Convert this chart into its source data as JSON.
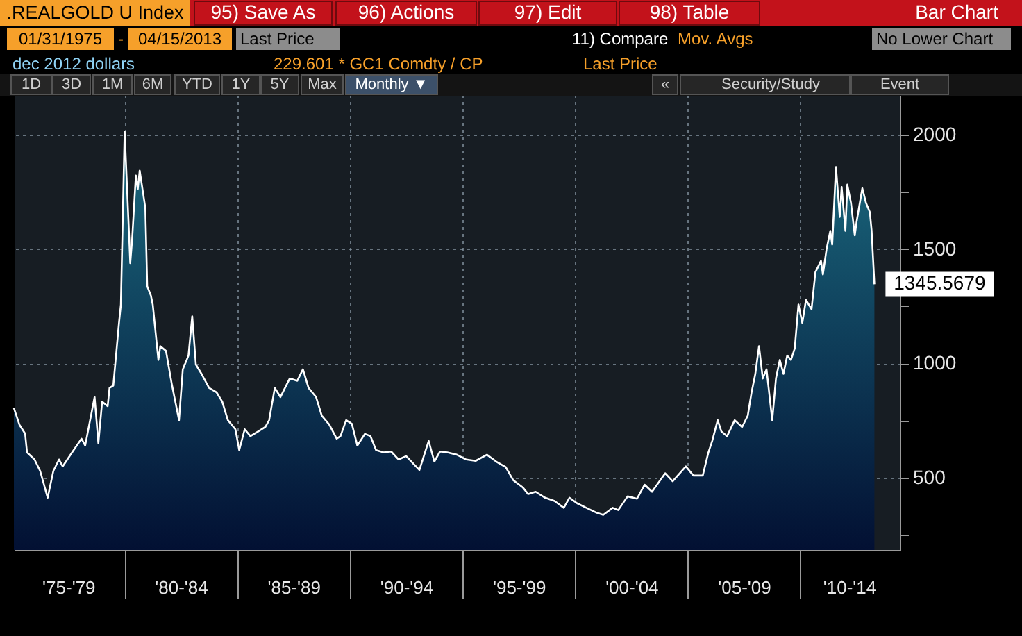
{
  "chart_data": {
    "type": "area",
    "title": ".REALGOLD U Index",
    "subtitle": "dec 2012 dollars",
    "annotations": [
      "95) Save As",
      "96) Actions",
      "97) Edit",
      "98) Table",
      "Bar Chart",
      "01/31/1975",
      "-",
      "04/15/2013",
      "Last Price",
      "11) Compare",
      "Mov. Avgs",
      "No Lower Chart",
      "229.601 * GC1 Comdty / CP",
      "Last Price",
      "1D",
      "3D",
      "1M",
      "6M",
      "YTD",
      "1Y",
      "5Y",
      "Max",
      "Monthly ▼",
      "«",
      "Security/Study",
      "Event"
    ],
    "x": [
      "1975-01-31",
      "1975-05",
      "1975-08",
      "1975-09",
      "1976-01",
      "1976-04",
      "1976-08",
      "1976-11",
      "1977-02",
      "1977-04",
      "1977-09",
      "1978-02",
      "1978-04",
      "1978-09",
      "1978-11",
      "1979-01",
      "1979-04",
      "1979-05",
      "1979-07",
      "1979-10",
      "1979-11",
      "1980-01",
      "1980-04",
      "1980-05",
      "1980-07",
      "1980-08",
      "1980-09",
      "1980-12",
      "1981-01",
      "1981-03",
      "1981-04",
      "1981-07",
      "1981-08",
      "1981-11",
      "1982-02",
      "1982-06",
      "1982-08",
      "1982-11",
      "1983-01",
      "1983-03",
      "1983-06",
      "1983-10",
      "1984-02",
      "1984-05",
      "1984-08",
      "1984-12",
      "1985-02",
      "1985-05",
      "1985-08",
      "1985-12",
      "1986-04",
      "1986-06",
      "1986-09",
      "1986-12",
      "1987-05",
      "1987-09",
      "1987-12",
      "1988-03",
      "1988-07",
      "1988-10",
      "1989-02",
      "1989-06",
      "1989-08",
      "1989-11",
      "1990-02",
      "1990-05",
      "1990-09",
      "1990-12",
      "1991-03",
      "1991-07",
      "1991-11",
      "1992-03",
      "1992-07",
      "1992-11",
      "1993-02",
      "1993-07",
      "1993-10",
      "1994-01",
      "1994-05",
      "1994-10",
      "1995-03",
      "1995-08",
      "1996-02",
      "1996-07",
      "1996-12",
      "1997-04",
      "1997-09",
      "1997-12",
      "1998-04",
      "1998-09",
      "1999-02",
      "1999-07",
      "1999-10",
      "2000-02",
      "2000-07",
      "2000-12",
      "2001-04",
      "2001-09",
      "2001-12",
      "2002-05",
      "2002-10",
      "2003-02",
      "2003-06",
      "2004-01",
      "2004-05",
      "2004-12",
      "2005-04",
      "2005-09",
      "2005-12",
      "2006-02",
      "2006-05",
      "2006-07",
      "2006-10",
      "2007-02",
      "2007-06",
      "2007-09",
      "2007-11",
      "2008-01",
      "2008-03",
      "2008-05",
      "2008-07",
      "2008-10",
      "2008-12",
      "2009-02",
      "2009-04",
      "2009-06",
      "2009-08",
      "2009-10",
      "2009-12",
      "2010-02",
      "2010-04",
      "2010-07",
      "2010-09",
      "2010-12",
      "2011-01",
      "2011-03",
      "2011-05",
      "2011-06",
      "2011-08",
      "2011-10",
      "2011-11",
      "2012-01",
      "2012-02",
      "2012-04",
      "2012-06",
      "2012-07",
      "2012-10",
      "2012-12",
      "2013-02",
      "2013-03",
      "2013-04-15"
    ],
    "series": [
      {
        "color": "#1b6b80",
        "values": [
          805,
          732,
          693,
          611,
          580,
          530,
          413,
          530,
          580,
          550,
          611,
          671,
          641,
          853,
          651,
          833,
          813,
          893,
          903,
          1176,
          1257,
          2013,
          1438,
          1539,
          1821,
          1761,
          1842,
          1680,
          1337,
          1297,
          1257,
          1015,
          1075,
          1055,
          913,
          752,
          974,
          1034,
          1206,
          995,
          954,
          893,
          873,
          833,
          752,
          712,
          621,
          712,
          682,
          702,
          722,
          752,
          893,
          853,
          934,
          924,
          974,
          893,
          853,
          772,
          732,
          671,
          682,
          752,
          736,
          641,
          692,
          682,
          621,
          611,
          615,
          580,
          595,
          560,
          534,
          661,
          571,
          615,
          611,
          601,
          580,
          574,
          601,
          571,
          547,
          490,
          459,
          429,
          439,
          413,
          399,
          369,
          413,
          389,
          369,
          349,
          338,
          369,
          359,
          419,
          409,
          470,
          439,
          520,
          485,
          550,
          510,
          510,
          611,
          661,
          752,
          702,
          682,
          752,
          722,
          772,
          873,
          954,
          1075,
          934,
          974,
          752,
          934,
          1015,
          954,
          1034,
          1015,
          1065,
          1257,
          1176,
          1277,
          1237,
          1398,
          1448,
          1388,
          1499,
          1579,
          1519,
          1858,
          1640,
          1771,
          1579,
          1781,
          1700,
          1559,
          1620,
          1765,
          1700,
          1660,
          1579,
          1345.5679
        ],
        "value_labels": [
          null,
          null,
          null,
          null,
          null,
          null,
          null,
          null,
          null,
          null,
          null,
          null,
          null,
          null,
          null,
          null,
          null,
          null,
          null,
          null,
          null,
          null,
          null,
          null,
          null,
          null,
          null,
          null,
          null,
          null,
          null,
          null,
          null,
          null,
          null,
          null,
          null,
          null,
          null,
          null,
          null,
          null,
          null,
          null,
          null,
          null,
          null,
          null,
          null,
          null,
          null,
          null,
          null,
          null,
          null,
          null,
          null,
          null,
          null,
          null,
          null,
          null,
          null,
          null,
          null,
          null,
          null,
          null,
          null,
          null,
          null,
          null,
          null,
          null,
          null,
          null,
          null,
          null,
          null,
          null,
          null,
          null,
          null,
          null,
          null,
          null,
          null,
          null,
          null,
          null,
          null,
          null,
          null,
          null,
          null,
          null,
          null,
          null,
          null,
          null,
          null,
          null,
          null,
          null,
          null,
          null,
          null,
          null,
          null,
          null,
          null,
          null,
          null,
          null,
          null,
          null,
          null,
          null,
          null,
          null,
          null,
          null,
          null,
          null,
          null,
          null,
          null,
          null,
          null,
          null,
          null,
          null,
          null,
          null,
          null,
          null,
          null,
          null,
          null,
          null,
          null,
          null,
          null,
          null,
          null,
          null,
          null,
          null,
          null,
          null,
          "1345.5679"
        ]
      }
    ],
    "xlim": [
      "1975-01-31",
      "2014-06"
    ],
    "xticks": [
      {
        "value": "1977-07",
        "label": "'75-'79"
      },
      {
        "value": "1980",
        "label": null
      },
      {
        "value": "1982-07",
        "label": "'80-'84"
      },
      {
        "value": "1985",
        "label": null
      },
      {
        "value": "1987-07",
        "label": "'85-'89"
      },
      {
        "value": "1990",
        "label": null
      },
      {
        "value": "1992-07",
        "label": "'90-'94"
      },
      {
        "value": "1995",
        "label": null
      },
      {
        "value": "1997-07",
        "label": "'95-'99"
      },
      {
        "value": "2000",
        "label": null
      },
      {
        "value": "2002-07",
        "label": "'00-'04"
      },
      {
        "value": "2005",
        "label": null
      },
      {
        "value": "2007-07",
        "label": "'05-'09"
      },
      {
        "value": "2010",
        "label": null
      },
      {
        "value": "2012-03",
        "label": "'10-'14"
      }
    ],
    "ylim": [
      185,
      2175
    ],
    "yticks": [
      {
        "value": 250,
        "label": null
      },
      500,
      {
        "value": 750,
        "label": null
      },
      1000,
      {
        "value": 1250,
        "label": null
      },
      1500,
      {
        "value": 1750,
        "label": null
      },
      2000
    ],
    "grid": true
  }
}
